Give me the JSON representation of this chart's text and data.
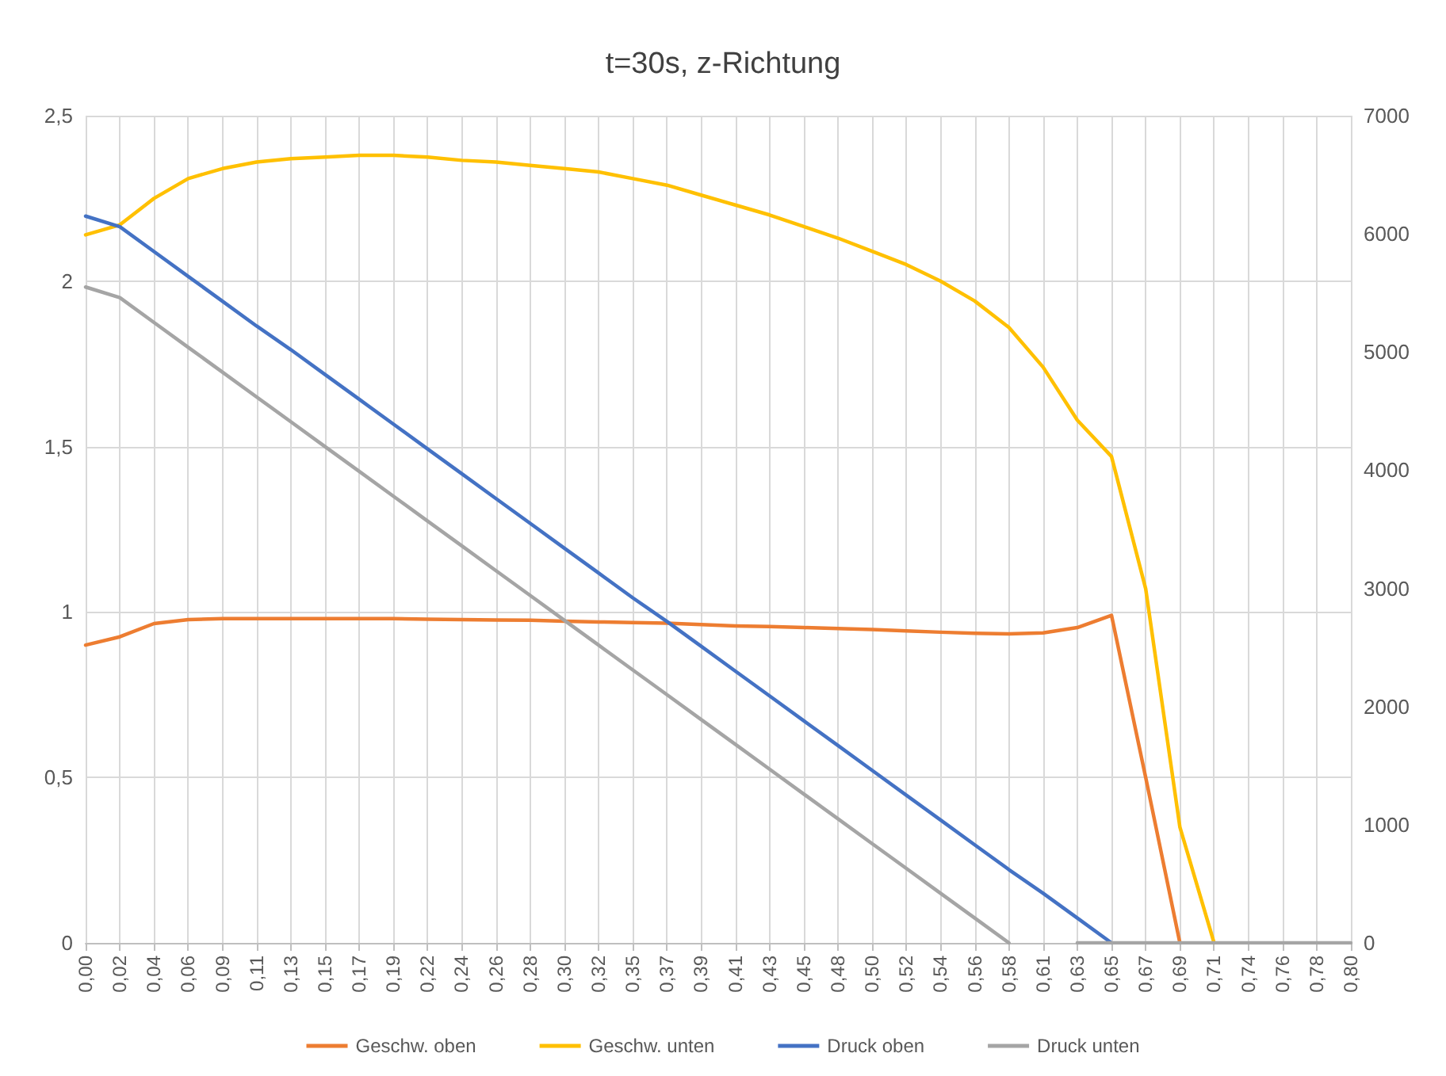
{
  "chart_data": {
    "type": "line",
    "title": "t=30s, z-Richtung",
    "categories": [
      "0,00",
      "0,02",
      "0,04",
      "0,06",
      "0,09",
      "0,11",
      "0,13",
      "0,15",
      "0,17",
      "0,19",
      "0,22",
      "0,24",
      "0,26",
      "0,28",
      "0,30",
      "0,32",
      "0,35",
      "0,37",
      "0,39",
      "0,41",
      "0,43",
      "0,45",
      "0,48",
      "0,50",
      "0,52",
      "0,54",
      "0,56",
      "0,58",
      "0,61",
      "0,63",
      "0,65",
      "0,67",
      "0,69",
      "0,71",
      "0,74",
      "0,76",
      "0,78",
      "0,80"
    ],
    "series": [
      {
        "name": "Geschw. oben",
        "color": "#ed7d31",
        "values": [
          0.9,
          0.925,
          0.965,
          0.977,
          0.98,
          0.98,
          0.98,
          0.98,
          0.98,
          0.98,
          0.978,
          0.977,
          0.976,
          0.975,
          0.972,
          0.97,
          0.968,
          0.966,
          0.962,
          0.958,
          0.956,
          0.953,
          0.95,
          0.947,
          0.943,
          0.939,
          0.936,
          0.934,
          0.937,
          0.953,
          0.99,
          0.5,
          0,
          null,
          null,
          null,
          null,
          null
        ]
      },
      {
        "name": "Geschw. unten",
        "color": "#ffc000",
        "values": [
          2.14,
          2.17,
          2.25,
          2.31,
          2.34,
          2.36,
          2.37,
          2.375,
          2.38,
          2.38,
          2.375,
          2.365,
          2.36,
          2.35,
          2.34,
          2.33,
          2.31,
          2.29,
          2.26,
          2.23,
          2.2,
          2.165,
          2.13,
          2.09,
          2.05,
          2.0,
          1.94,
          1.86,
          1.74,
          1.58,
          1.47,
          1.07,
          0.35,
          0,
          null,
          null,
          null,
          null
        ]
      },
      {
        "name": "Druck oben",
        "color": "#4472c4",
        "axis": "y2",
        "values": [
          6150,
          6060,
          5850,
          5640,
          5430,
          5220,
          5020,
          4810,
          4600,
          4390,
          4180,
          3970,
          3760,
          3550,
          3340,
          3130,
          2920,
          2720,
          2510,
          2300,
          2090,
          1880,
          1670,
          1460,
          1250,
          1040,
          830,
          620,
          420,
          210,
          0,
          null,
          null,
          null,
          null,
          null,
          null,
          null
        ]
      },
      {
        "name": "Druck unten",
        "color": "#a5a5a5",
        "axis": "y2",
        "values": [
          5550,
          5460,
          5250,
          5040,
          4830,
          4620,
          4410,
          4200,
          3990,
          3780,
          3570,
          3360,
          3150,
          2940,
          2730,
          2520,
          2310,
          2100,
          1890,
          1680,
          1470,
          1260,
          1050,
          840,
          630,
          420,
          210,
          0,
          null,
          0,
          0,
          0,
          0,
          0,
          0,
          0,
          0,
          0
        ]
      }
    ],
    "ylim": [
      0,
      2.5
    ],
    "yticks": [
      0,
      {
        "value": 0.5,
        "label": "0,5"
      },
      1,
      {
        "value": 1.5,
        "label": "1,5"
      },
      2,
      {
        "value": 2.5,
        "label": "2,5"
      }
    ],
    "y2lim": [
      0,
      7000
    ],
    "y2ticks": [
      0,
      1000,
      2000,
      3000,
      4000,
      5000,
      6000,
      7000
    ],
    "grid": true,
    "legend": "bottom",
    "marker": "none",
    "line_style": "solid"
  }
}
